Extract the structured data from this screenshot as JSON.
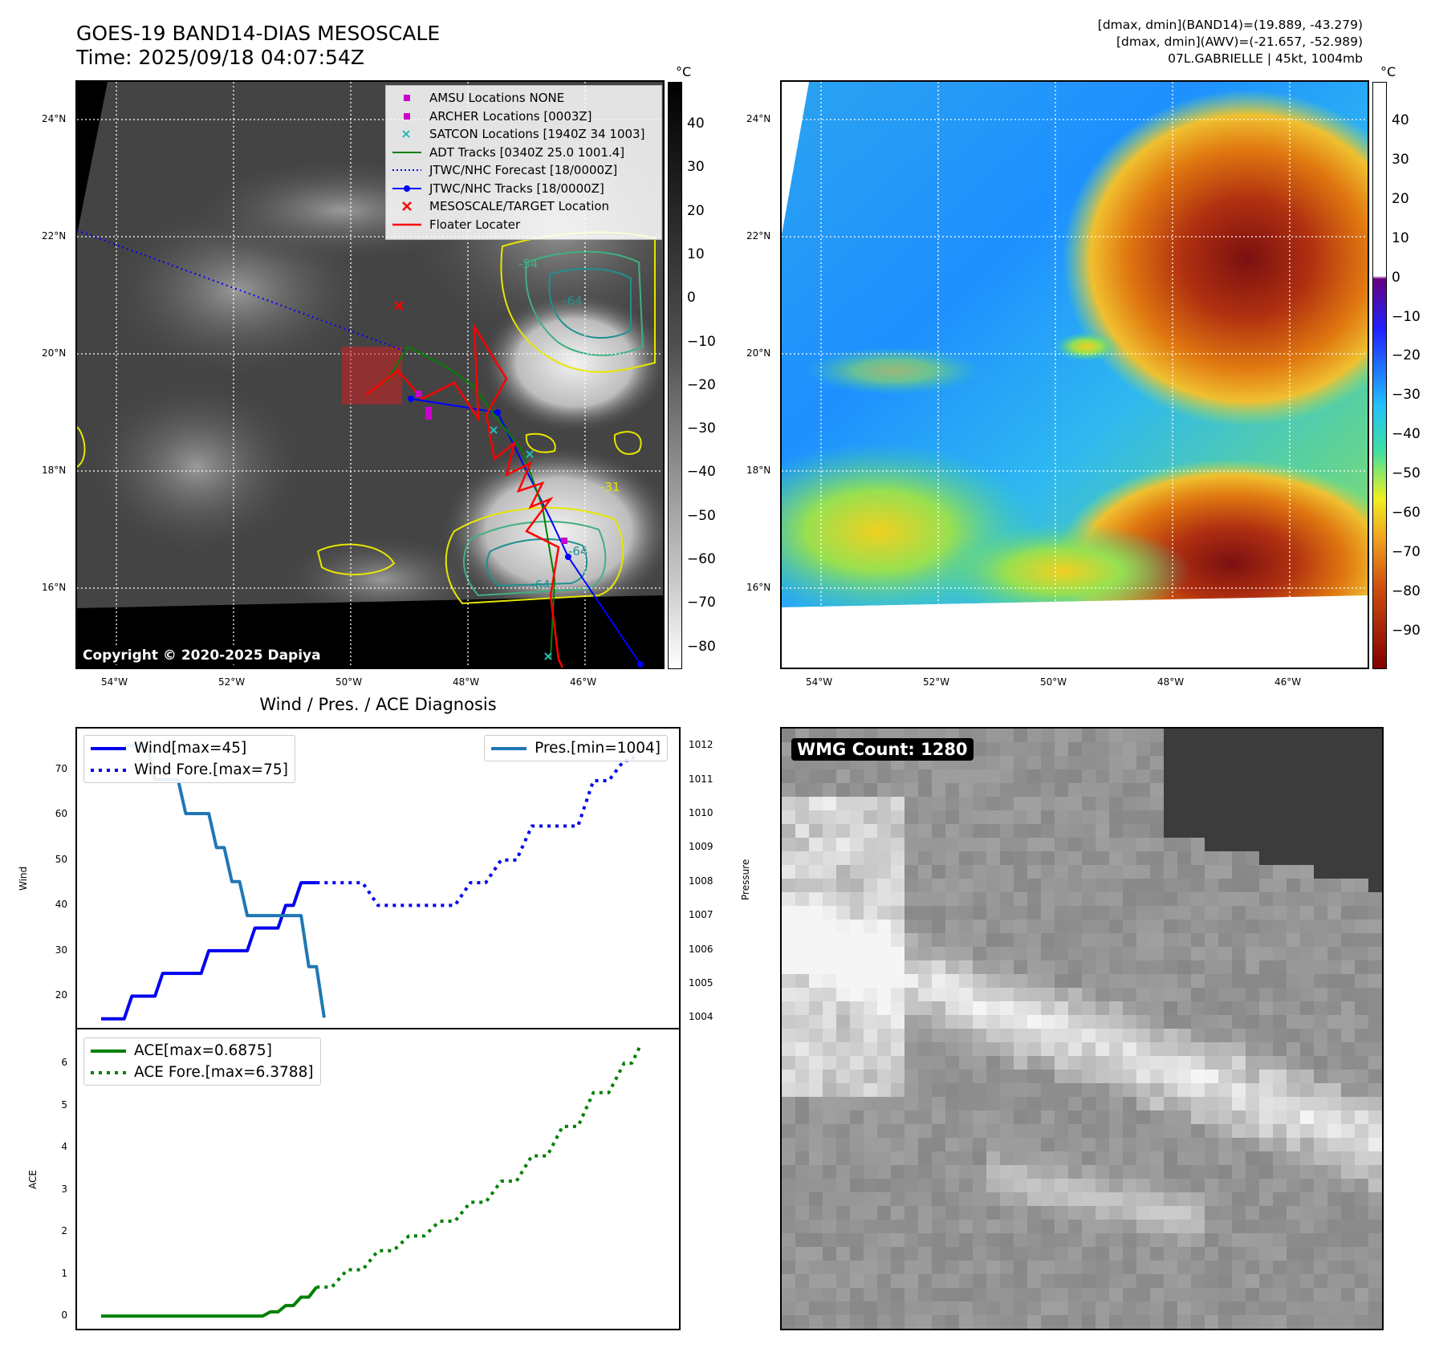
{
  "header": {
    "title_line1": "GOES-19 BAND14-DIAS MESOSCALE",
    "title_line2": "Time: 2025/09/18 04:07:54Z",
    "info_line1": "[dmax, dmin](BAND14)=(19.889, -43.279)",
    "info_line2": "[dmax, dmin](AWV)=(-21.657, -52.989)",
    "info_line3": "07L.GABRIELLE | 45kt, 1004mb"
  },
  "map_left": {
    "lat_labels": [
      "24°N",
      "22°N",
      "20°N",
      "18°N",
      "16°N"
    ],
    "lon_labels": [
      "54°W",
      "52°W",
      "50°W",
      "48°W",
      "46°W"
    ],
    "contour_labels": [
      "-54",
      "-64",
      "-31",
      "-64",
      "-64"
    ],
    "legend": [
      {
        "label": "AMSU Locations NONE",
        "color": "#cc00cc",
        "kind": "square"
      },
      {
        "label": "ARCHER Locations [0003Z]",
        "color": "#cc00cc",
        "kind": "square"
      },
      {
        "label": "SATCON Locations [1940Z 34 1003]",
        "color": "#22bbbb",
        "kind": "x"
      },
      {
        "label": "ADT Tracks [0340Z 25.0 1001.4]",
        "color": "#008000",
        "kind": "line"
      },
      {
        "label": "JTWC/NHC Forecast [18/0000Z]",
        "color": "#0000ff",
        "kind": "dotted"
      },
      {
        "label": "JTWC/NHC Tracks [18/0000Z]",
        "color": "#0000ff",
        "kind": "line-dot"
      },
      {
        "label": "MESOSCALE/TARGET Location",
        "color": "#ff0000",
        "kind": "x"
      },
      {
        "label": "Floater Locater",
        "color": "#ff0000",
        "kind": "line"
      }
    ],
    "colorbar_unit": "°C",
    "colorbar_ticks": [
      "40",
      "30",
      "20",
      "10",
      "0",
      "−10",
      "−20",
      "−30",
      "−40",
      "−50",
      "−60",
      "−70",
      "−80"
    ],
    "copyright": "Copyright © 2020-2025 Dapiya"
  },
  "map_right": {
    "lat_labels": [
      "24°N",
      "22°N",
      "20°N",
      "18°N",
      "16°N"
    ],
    "lon_labels": [
      "54°W",
      "52°W",
      "50°W",
      "48°W",
      "46°W"
    ],
    "colorbar_unit": "°C",
    "colorbar_ticks": [
      "40",
      "30",
      "20",
      "10",
      "0",
      "−10",
      "−20",
      "−30",
      "−40",
      "−50",
      "−60",
      "−70",
      "−80",
      "−90"
    ]
  },
  "wmg": {
    "label": "WMG Count: 1280"
  },
  "chart_data": [
    {
      "type": "line",
      "title": "Wind / Pres. / ACE Diagnosis",
      "ylabel": "Wind",
      "ylabel_right": "Pressure",
      "ylim": [
        13,
        79
      ],
      "ylim_right": [
        1003.7,
        1012.5
      ],
      "yticks": [
        20,
        30,
        40,
        50,
        60,
        70
      ],
      "yticks_right": [
        1004,
        1005,
        1006,
        1007,
        1008,
        1009,
        1010,
        1011,
        1012
      ],
      "x_range": [
        0,
        36
      ],
      "series": [
        {
          "name": "Wind[max=45]",
          "axis": "left",
          "style": "solid",
          "color": "#0000ee",
          "x": [
            0,
            1,
            2,
            3,
            4,
            5,
            6,
            7,
            8,
            9,
            10,
            11,
            12,
            13,
            14
          ],
          "values": [
            15,
            15,
            20,
            20,
            25,
            25,
            25,
            30,
            30,
            30,
            35,
            35,
            40,
            45,
            45
          ]
        },
        {
          "name": "Wind Fore.[max=75]",
          "axis": "left",
          "style": "dotted",
          "color": "#0000ee",
          "x": [
            14,
            16,
            18,
            20,
            22,
            24,
            26,
            28,
            30,
            32,
            34,
            35
          ],
          "values": [
            45,
            45,
            40,
            40,
            40,
            45,
            50,
            57.5,
            57.5,
            67.5,
            72,
            75
          ]
        },
        {
          "name": "Pres.[min=1004]",
          "axis": "right",
          "style": "solid",
          "color": "#1f77b4",
          "x": [
            1.5,
            2.5,
            3.5,
            4.5,
            5.5,
            6.5,
            7.5,
            8.5,
            9.5,
            10.5,
            11.5,
            12.5,
            13.5,
            14.5
          ],
          "values": [
            1012,
            1012,
            1011,
            1011,
            1010,
            1010,
            1009,
            1008,
            1007,
            1007,
            1007,
            1007,
            1005.5,
            1004
          ]
        }
      ]
    },
    {
      "type": "line",
      "ylabel": "ACE",
      "ylim": [
        -0.3,
        6.8
      ],
      "yticks": [
        0,
        1,
        2,
        3,
        4,
        5,
        6
      ],
      "x_range": [
        0,
        36
      ],
      "series": [
        {
          "name": "ACE[max=0.6875]",
          "style": "solid",
          "color": "#008000",
          "x": [
            0,
            2,
            4,
            6,
            8,
            10,
            11,
            12,
            13,
            14
          ],
          "values": [
            0,
            0,
            0,
            0,
            0,
            0,
            0.1,
            0.25,
            0.45,
            0.6875
          ]
        },
        {
          "name": "ACE Fore.[max=6.3788]",
          "style": "dotted",
          "color": "#008000",
          "x": [
            14,
            16,
            18,
            20,
            22,
            24,
            26,
            28,
            30,
            32,
            34,
            35
          ],
          "values": [
            0.6875,
            1.1,
            1.55,
            1.9,
            2.25,
            2.7,
            3.2,
            3.8,
            4.5,
            5.3,
            6.0,
            6.3788
          ]
        }
      ]
    }
  ]
}
